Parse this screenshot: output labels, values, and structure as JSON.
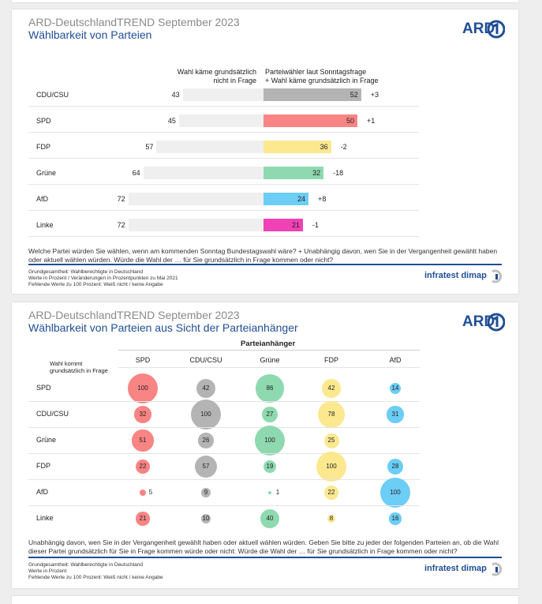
{
  "chart1": {
    "title": "ARD-DeutschlandTREND September 2023",
    "subtitle": "Wählbarkeit von Parteien",
    "col_left": "Wahl käme grundsätzlich\nnicht in Frage",
    "col_right": "Parteiwähler laut Sonntagsfrage\n+ Wahl käme grundsätzlich in Frage",
    "question": "Welche Partei würden Sie wählen, wenn am kommenden Sonntag Bundestagswahl wäre? + Unabhängig davon, wen Sie in der Vergangenheit gewählt haben oder aktuell wählen würden. Würde die Wahl der … für Sie grundsätzlich in Frage kommen oder nicht?",
    "footnote": [
      "Grundgesamtheit: Wahlberechtigte in Deutschland",
      "Werte in Prozent / Veränderungen in Prozentpunkten zu Mai 2021",
      "Fehlende Werte zu 100 Prozent: Weiß nicht / keine Angabe"
    ]
  },
  "chart2": {
    "title": "ARD-DeutschlandTREND September 2023",
    "subtitle": "Wählbarkeit von Parteien aus Sicht der Parteianhänger",
    "group_header": "Parteianhänger",
    "row_header": "Wahl kommt\ngrundsätzlich in Frage",
    "question": "Unabhängig davon, wen Sie in der Vergangenheit gewählt haben oder aktuell wählen würden. Geben Sie bitte zu jeder der folgenden Parteien an, ob die Wahl dieser Partei grundsätzlich für Sie in Frage kommen würde oder nicht: Würde die Wahl der … für Sie grundsätzlich in Frage kommen oder nicht?",
    "footnote": [
      "Grundgesamtheit: Wahlberechtigte in Deutschland",
      "Werte in Prozent",
      "Fehlende Werte zu 100 Prozent: Weiß nicht / keine Angabe"
    ]
  },
  "brand": {
    "ard": "ARD",
    "infratest": "infratest dimap",
    "blue": "#1f4e96"
  },
  "chart_data": [
    {
      "type": "bar",
      "categories": [
        "CDU/CSU",
        "SPD",
        "FDP",
        "Grüne",
        "AfD",
        "Linke"
      ],
      "series": [
        {
          "name": "Wahl käme grundsätzlich nicht in Frage",
          "values": [
            43,
            45,
            57,
            64,
            72,
            72
          ]
        },
        {
          "name": "Parteiwähler laut Sonntagsfrage + Wahl käme grundsätzlich in Frage",
          "values": [
            52,
            50,
            36,
            32,
            24,
            21
          ]
        }
      ],
      "changes": [
        "+3",
        "+1",
        "-2",
        "-18",
        "+8",
        "-1"
      ],
      "colors": [
        "#b4b4b4",
        "#f88484",
        "#fbe88f",
        "#8ed9b0",
        "#6ccdf5",
        "#f041b5"
      ]
    },
    {
      "type": "heatmap",
      "columns": [
        "SPD",
        "CDU/CSU",
        "Grüne",
        "FDP",
        "AfD"
      ],
      "rows": [
        "SPD",
        "CDU/CSU",
        "Grüne",
        "FDP",
        "AfD",
        "Linke"
      ],
      "values": [
        [
          100,
          42,
          86,
          42,
          14
        ],
        [
          32,
          100,
          27,
          78,
          31
        ],
        [
          51,
          26,
          100,
          25,
          null
        ],
        [
          22,
          57,
          19,
          100,
          28
        ],
        [
          5,
          9,
          1,
          22,
          100
        ],
        [
          21,
          10,
          40,
          8,
          16
        ]
      ],
      "column_colors": [
        "#f88484",
        "#b4b4b4",
        "#8ed9b0",
        "#fbe88f",
        "#6ccdf5"
      ]
    }
  ]
}
